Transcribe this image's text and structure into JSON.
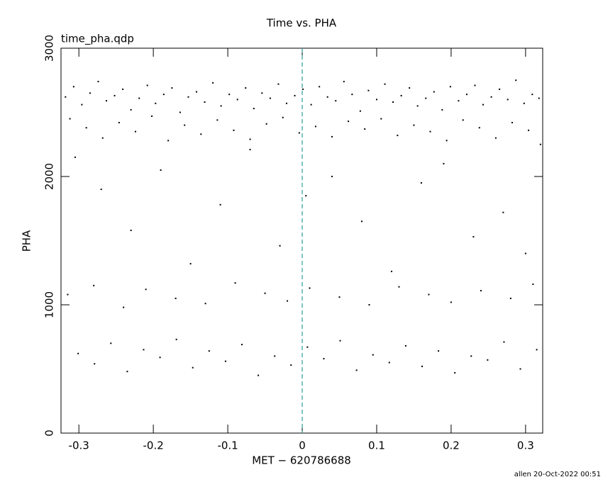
{
  "chart_data": {
    "type": "scatter",
    "title": "Time vs. PHA",
    "subtitle": "time_pha.qdp",
    "x_label": "MET − 620786688",
    "y_label": "PHA",
    "footer": "allen 20-Oct-2022 00:51",
    "color": "#000000",
    "xlim": [
      -0.324,
      0.323
    ],
    "ylim": [
      0,
      3000
    ],
    "xticks": [
      -0.3,
      -0.2,
      -0.1,
      0,
      0.1,
      0.2,
      0.3
    ],
    "yticks": [
      0,
      1000,
      2000,
      3000
    ],
    "vline": {
      "x": 0,
      "color": "#2a9d9d"
    },
    "x": [
      -0.318,
      -0.307,
      -0.296,
      -0.285,
      -0.274,
      -0.263,
      -0.252,
      -0.241,
      -0.23,
      -0.219,
      -0.208,
      -0.197,
      -0.186,
      -0.175,
      -0.164,
      -0.153,
      -0.142,
      -0.131,
      -0.12,
      -0.109,
      -0.098,
      -0.087,
      -0.076,
      -0.065,
      -0.054,
      -0.043,
      -0.032,
      -0.021,
      -0.01,
      0.001,
      0.012,
      0.023,
      0.034,
      0.045,
      0.056,
      0.067,
      0.078,
      0.089,
      0.1,
      0.111,
      0.122,
      0.133,
      0.144,
      0.155,
      0.166,
      0.177,
      0.188,
      0.199,
      0.21,
      0.221,
      0.232,
      0.243,
      0.254,
      0.265,
      0.276,
      0.287,
      0.298,
      0.309,
      0.318,
      -0.312,
      -0.29,
      -0.268,
      -0.246,
      -0.224,
      -0.202,
      -0.18,
      -0.158,
      -0.136,
      -0.114,
      -0.092,
      -0.07,
      -0.048,
      -0.026,
      -0.004,
      0.018,
      0.04,
      0.062,
      0.084,
      0.106,
      0.128,
      0.15,
      0.172,
      0.194,
      0.216,
      0.238,
      0.26,
      0.282,
      0.304,
      -0.301,
      -0.279,
      -0.257,
      -0.235,
      -0.213,
      -0.191,
      -0.169,
      -0.147,
      -0.125,
      -0.103,
      -0.081,
      -0.059,
      -0.037,
      -0.015,
      0.007,
      0.029,
      0.051,
      0.073,
      0.095,
      0.117,
      0.139,
      0.161,
      0.183,
      0.205,
      0.227,
      0.249,
      0.271,
      0.293,
      0.315,
      -0.315,
      -0.28,
      -0.24,
      -0.21,
      -0.17,
      -0.13,
      -0.09,
      -0.05,
      -0.02,
      0.01,
      0.05,
      0.09,
      0.13,
      0.17,
      0.2,
      0.24,
      0.28,
      0.31,
      -0.305,
      -0.27,
      -0.23,
      -0.19,
      -0.15,
      -0.11,
      -0.07,
      -0.03,
      0.005,
      0.04,
      0.08,
      0.12,
      0.16,
      0.19,
      0.23,
      0.27,
      0.3,
      0.32
    ],
    "values": [
      2620,
      2700,
      2560,
      2650,
      2740,
      2590,
      2630,
      2680,
      2520,
      2610,
      2710,
      2570,
      2640,
      2690,
      2500,
      2620,
      2660,
      2580,
      2730,
      2550,
      2640,
      2600,
      2690,
      2530,
      2650,
      2610,
      2720,
      2570,
      2630,
      2680,
      2560,
      2700,
      2620,
      2590,
      2740,
      2640,
      2510,
      2670,
      2600,
      2720,
      2580,
      2630,
      2690,
      2550,
      2610,
      2660,
      2520,
      2700,
      2590,
      2640,
      2710,
      2560,
      2620,
      2680,
      2600,
      2750,
      2570,
      2640,
      2610,
      2450,
      2380,
      2300,
      2420,
      2350,
      2470,
      2280,
      2400,
      2330,
      2440,
      2360,
      2290,
      2410,
      2460,
      2340,
      2390,
      2310,
      2430,
      2370,
      2450,
      2320,
      2400,
      2350,
      2280,
      2440,
      2380,
      2300,
      2420,
      2360,
      620,
      540,
      700,
      480,
      650,
      590,
      730,
      510,
      640,
      560,
      690,
      450,
      600,
      530,
      670,
      580,
      720,
      490,
      610,
      550,
      680,
      520,
      640,
      470,
      600,
      570,
      710,
      500,
      650,
      1080,
      1150,
      980,
      1120,
      1050,
      1010,
      1170,
      1090,
      1030,
      1130,
      1060,
      1000,
      1140,
      1080,
      1020,
      1110,
      1050,
      1160,
      2150,
      1900,
      1580,
      2050,
      1320,
      1780,
      2210,
      1460,
      1850,
      2000,
      1650,
      1260,
      1950,
      2100,
      1530,
      1720,
      1400,
      2250
    ]
  }
}
